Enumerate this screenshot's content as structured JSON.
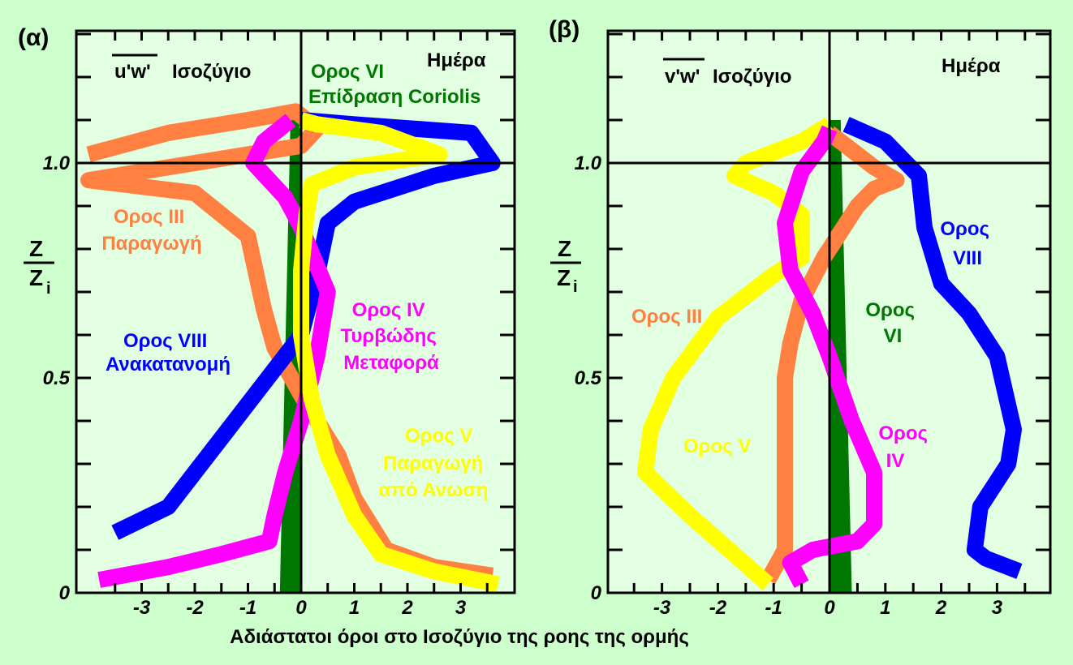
{
  "x_axis_title": "Αδιάστατοι όροι στο Ισοζύγιο της ροης της ορμής",
  "y_axis_label": {
    "numerator": "Z",
    "denominator": "Z",
    "subscript": "i"
  },
  "colors": {
    "background": "#ccffcc",
    "plot_bg": "#e2ffe2",
    "term_III": "#ff8040",
    "term_IV": "#ff00ff",
    "term_V": "#ffff00",
    "term_VI": "#007700",
    "term_VIII": "#0000ff",
    "axes": "#000000"
  },
  "chart_data": [
    {
      "type": "line",
      "panel_label": "(α)",
      "flux_label": "u'w'",
      "balance_label": "Ισοζύγιο",
      "time_label": "Ημέρα",
      "xlim": [
        -4,
        4
      ],
      "ylim": [
        0,
        1.3
      ],
      "x_ticks": [
        -3,
        -2,
        -1,
        0,
        1,
        2,
        3
      ],
      "y_ticks": [
        0,
        0.5,
        1.0
      ],
      "y_tick_labels": [
        "0",
        "0.5",
        "1.0"
      ],
      "annotations": [
        {
          "id": "VI",
          "lines": [
            "Ορος VI",
            "Επίδραση Coriolis"
          ],
          "color": "#007700"
        },
        {
          "id": "III",
          "lines": [
            "Ορος III",
            "Παραγωγή"
          ],
          "color": "#ff8040"
        },
        {
          "id": "IV",
          "lines": [
            "Ορος IV",
            "Τυρβώδης",
            "Μεταφορά"
          ],
          "color": "#ff00ff"
        },
        {
          "id": "VIII",
          "lines": [
            "Ορος VIII",
            "Ανακατανομή"
          ],
          "color": "#0000ff"
        },
        {
          "id": "V",
          "lines": [
            "Ορος V",
            "Παραγωγή",
            "από Ανωση"
          ],
          "color": "#ffff00"
        }
      ],
      "series": [
        {
          "name": "Ορος VI",
          "kind": "band",
          "color": "#007700",
          "x_left": [
            [
              -0.4,
              0.0
            ],
            [
              -0.2,
              1.1
            ]
          ],
          "x_right": [
            [
              0.0,
              0.0
            ],
            [
              0.0,
              1.1
            ]
          ]
        },
        {
          "name": "Ορος III",
          "color": "#ff8040",
          "points": [
            [
              -4.0,
              1.02
            ],
            [
              -2.5,
              1.07
            ],
            [
              -1.0,
              1.1
            ],
            [
              -0.1,
              1.12
            ],
            [
              0.3,
              1.08
            ],
            [
              0.0,
              1.04
            ],
            [
              -4.0,
              0.96
            ],
            [
              -2.0,
              0.93
            ],
            [
              -1.0,
              0.83
            ],
            [
              -0.7,
              0.66
            ],
            [
              -0.5,
              0.57
            ],
            [
              0.0,
              0.46
            ],
            [
              0.7,
              0.32
            ],
            [
              1.0,
              0.22
            ],
            [
              1.6,
              0.1
            ],
            [
              2.5,
              0.06
            ],
            [
              3.6,
              0.04
            ]
          ]
        },
        {
          "name": "Ορος VIII",
          "color": "#0000ff",
          "points": [
            [
              -3.5,
              0.14
            ],
            [
              -2.5,
              0.2
            ],
            [
              -1.5,
              0.36
            ],
            [
              -0.5,
              0.52
            ],
            [
              0.0,
              0.6
            ],
            [
              0.3,
              0.74
            ],
            [
              0.5,
              0.86
            ],
            [
              1.0,
              0.91
            ],
            [
              2.5,
              0.97
            ],
            [
              3.6,
              1.0
            ],
            [
              3.2,
              1.07
            ],
            [
              1.0,
              1.09
            ],
            [
              0.0,
              1.1
            ]
          ]
        },
        {
          "name": "Ορος IV",
          "color": "#ff00ff",
          "points": [
            [
              -3.8,
              0.03
            ],
            [
              -2.5,
              0.06
            ],
            [
              -1.5,
              0.09
            ],
            [
              -0.6,
              0.12
            ],
            [
              -0.5,
              0.18
            ],
            [
              -0.3,
              0.28
            ],
            [
              0.0,
              0.4
            ],
            [
              0.3,
              0.55
            ],
            [
              0.5,
              0.7
            ],
            [
              0.3,
              0.76
            ],
            [
              0.0,
              0.85
            ],
            [
              -0.3,
              0.92
            ],
            [
              -0.9,
              1.0
            ],
            [
              -0.7,
              1.05
            ],
            [
              -0.2,
              1.1
            ]
          ]
        },
        {
          "name": "Ορος V",
          "color": "#ffff00",
          "points": [
            [
              3.7,
              0.02
            ],
            [
              2.5,
              0.05
            ],
            [
              1.5,
              0.09
            ],
            [
              1.0,
              0.18
            ],
            [
              0.5,
              0.32
            ],
            [
              0.2,
              0.45
            ],
            [
              0.0,
              0.6
            ],
            [
              0.0,
              0.75
            ],
            [
              0.1,
              0.88
            ],
            [
              0.2,
              0.95
            ],
            [
              1.0,
              0.99
            ],
            [
              2.6,
              1.02
            ],
            [
              1.5,
              1.07
            ],
            [
              0.3,
              1.09
            ],
            [
              0.0,
              1.1
            ]
          ]
        }
      ]
    },
    {
      "type": "line",
      "panel_label": "(β)",
      "flux_label": "v'w'",
      "balance_label": "Ισοζύγιο",
      "time_label": "Ημέρα",
      "xlim": [
        -4,
        4
      ],
      "ylim": [
        0,
        1.3
      ],
      "x_ticks": [
        -3,
        -2,
        -1,
        0,
        1,
        2,
        3
      ],
      "y_ticks": [
        0,
        0.5,
        1.0
      ],
      "y_tick_labels": [
        "0",
        "0.5",
        "1.0"
      ],
      "annotations": [
        {
          "id": "VIII",
          "lines": [
            "Ορος",
            "VIII"
          ],
          "color": "#0000ff"
        },
        {
          "id": "III",
          "lines": [
            "Ορος III"
          ],
          "color": "#ff8040"
        },
        {
          "id": "VI",
          "lines": [
            "Ορος",
            "VI"
          ],
          "color": "#007700"
        },
        {
          "id": "V",
          "lines": [
            "Ορος V"
          ],
          "color": "#ffff00"
        },
        {
          "id": "IV",
          "lines": [
            "Ορος",
            "IV"
          ],
          "color": "#ff00ff"
        }
      ],
      "series": [
        {
          "name": "Ορος VI",
          "kind": "band",
          "color": "#007700",
          "x_left": [
            [
              0.0,
              0.0
            ],
            [
              0.0,
              1.1
            ]
          ],
          "x_right": [
            [
              0.4,
              0.0
            ],
            [
              0.2,
              1.1
            ]
          ]
        },
        {
          "name": "Ορος VIII",
          "color": "#0000ff",
          "points": [
            [
              3.4,
              0.05
            ],
            [
              2.8,
              0.08
            ],
            [
              2.6,
              0.1
            ],
            [
              2.7,
              0.2
            ],
            [
              3.2,
              0.3
            ],
            [
              3.3,
              0.38
            ],
            [
              3.0,
              0.55
            ],
            [
              2.5,
              0.65
            ],
            [
              2.0,
              0.72
            ],
            [
              1.7,
              0.85
            ],
            [
              1.6,
              0.97
            ],
            [
              1.0,
              1.05
            ],
            [
              0.3,
              1.09
            ]
          ]
        },
        {
          "name": "Ορος III",
          "color": "#ff8040",
          "points": [
            [
              -1.1,
              0.03
            ],
            [
              -0.8,
              0.1
            ],
            [
              -0.8,
              0.3
            ],
            [
              -0.8,
              0.5
            ],
            [
              -0.7,
              0.58
            ],
            [
              -0.5,
              0.68
            ],
            [
              -0.1,
              0.78
            ],
            [
              0.2,
              0.84
            ],
            [
              0.5,
              0.9
            ],
            [
              0.8,
              0.94
            ],
            [
              1.2,
              0.96
            ],
            [
              0.8,
              0.99
            ],
            [
              0.3,
              1.04
            ],
            [
              0.0,
              1.07
            ]
          ]
        },
        {
          "name": "Ορος V",
          "color": "#ffff00",
          "points": [
            [
              -1.1,
              0.02
            ],
            [
              -2.5,
              0.18
            ],
            [
              -3.3,
              0.28
            ],
            [
              -3.2,
              0.38
            ],
            [
              -2.8,
              0.5
            ],
            [
              -2.0,
              0.64
            ],
            [
              -1.0,
              0.74
            ],
            [
              -0.5,
              0.78
            ],
            [
              -0.5,
              0.88
            ],
            [
              -1.0,
              0.93
            ],
            [
              -1.7,
              0.97
            ],
            [
              -1.5,
              1.0
            ],
            [
              -0.5,
              1.05
            ],
            [
              0.0,
              1.09
            ]
          ]
        },
        {
          "name": "Ορος IV",
          "color": "#ff00ff",
          "points": [
            [
              -0.5,
              0.02
            ],
            [
              -0.7,
              0.07
            ],
            [
              -0.3,
              0.1
            ],
            [
              0.5,
              0.12
            ],
            [
              0.8,
              0.16
            ],
            [
              0.8,
              0.28
            ],
            [
              0.4,
              0.4
            ],
            [
              0.0,
              0.55
            ],
            [
              -0.3,
              0.65
            ],
            [
              -0.7,
              0.75
            ],
            [
              -0.8,
              0.86
            ],
            [
              -0.5,
              0.98
            ],
            [
              -0.1,
              1.05
            ],
            [
              0.0,
              1.08
            ]
          ]
        }
      ]
    }
  ]
}
